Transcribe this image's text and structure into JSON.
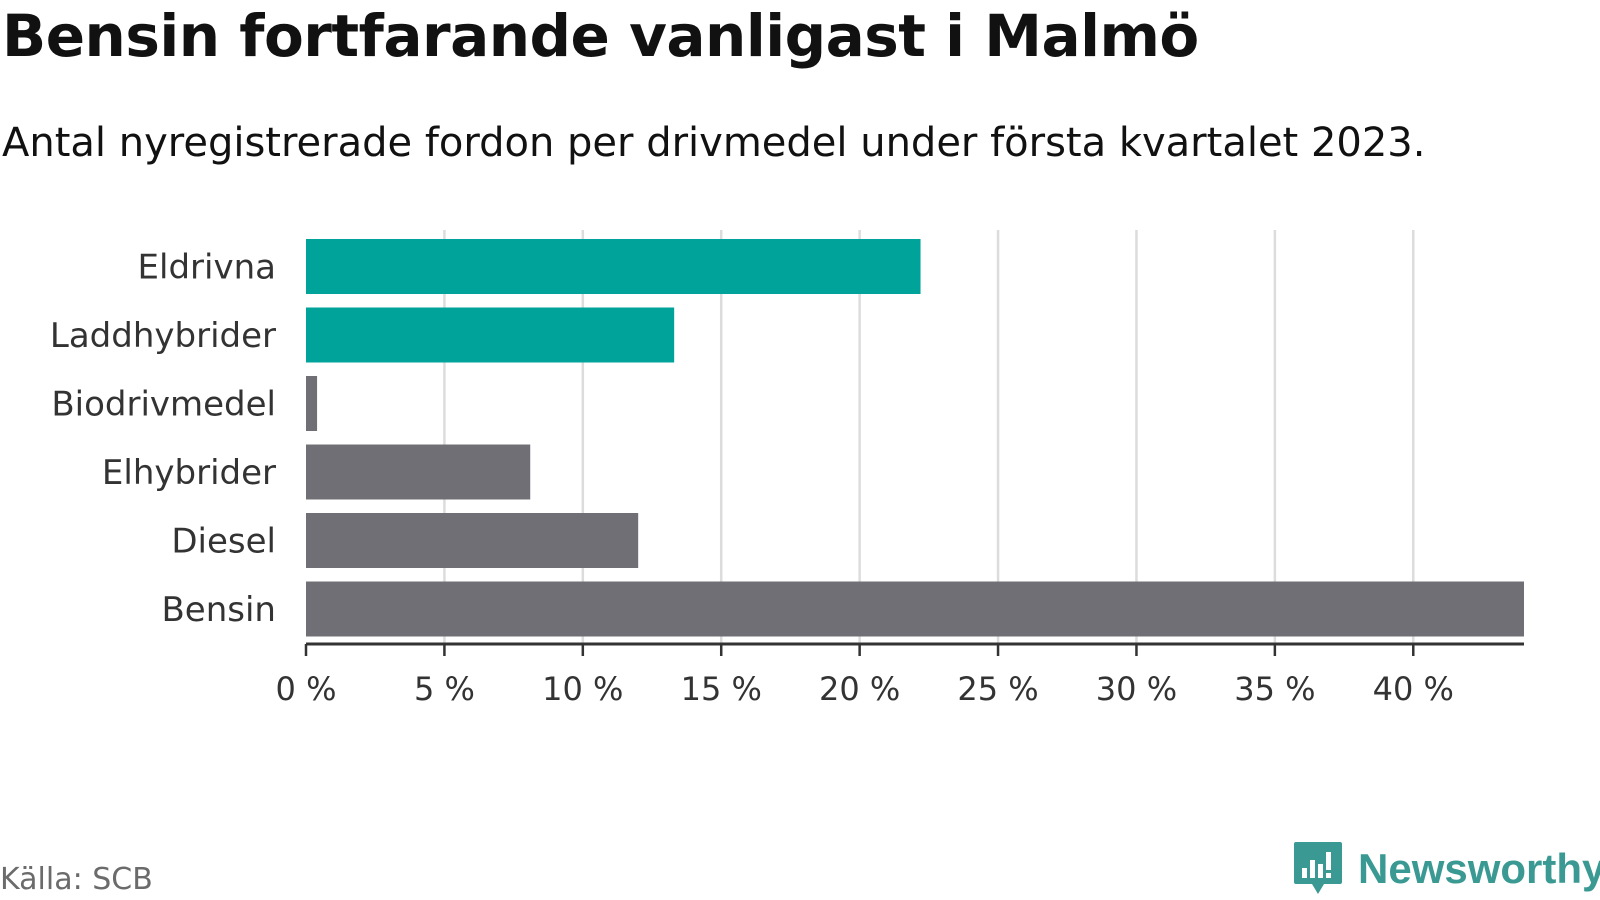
{
  "header": {
    "title": "Bensin fortfarande vanligast i Malmö",
    "subtitle": "Antal nyregistrerade fordon per drivmedel under första kvartalet 2023."
  },
  "footer": {
    "source": "Källa: SCB",
    "brand": "Newsworthy",
    "brand_icon": "newsworthy-logo-icon"
  },
  "colors": {
    "highlight": "#00a39a",
    "default": "#706f75",
    "grid": "#dcdcdc",
    "axis": "#333333",
    "brand": "#3a9a93"
  },
  "chart_data": {
    "type": "bar",
    "orientation": "horizontal",
    "categories": [
      "Eldrivna",
      "Laddhybrider",
      "Biodrivmedel",
      "Elhybrider",
      "Diesel",
      "Bensin"
    ],
    "values": [
      22.2,
      13.3,
      0.4,
      8.1,
      12.0,
      44.0
    ],
    "highlighted": [
      "Eldrivna",
      "Laddhybrider"
    ],
    "xlim": [
      0,
      44
    ],
    "xticks": [
      0,
      5,
      10,
      15,
      20,
      25,
      30,
      35,
      40
    ],
    "xtick_labels": [
      "0 %",
      "5 %",
      "10 %",
      "15 %",
      "20 %",
      "25 %",
      "30 %",
      "35 %",
      "40 %"
    ],
    "grid": "vertical",
    "legend": "none"
  }
}
